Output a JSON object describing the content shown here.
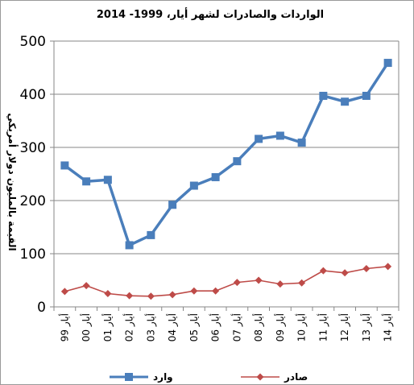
{
  "chart_data": {
    "type": "line",
    "title": "الواردات والصادرات لشهر أيار،  1999- 2014",
    "ylabel": "القيمة بالمليون دولار أمريكي",
    "xlabel": "",
    "ylim": [
      0,
      500
    ],
    "yticks": [
      "0",
      "100",
      "200",
      "300",
      "400",
      "500"
    ],
    "grid": true,
    "legend_position": "bottom",
    "categories": [
      "أيار 99",
      "أيار 00",
      "أيار 01",
      "أيار 02",
      "أيار 03",
      "أيار 04",
      "أيار 05",
      "أيار 06",
      "أيار 07",
      "أيار 08",
      "أيار 09",
      "أيار 10",
      "أيار 11",
      "أيار 12",
      "أيار 13",
      "أيار 14"
    ],
    "series": [
      {
        "name": "وارد",
        "color": "#4a7ebb",
        "marker": "square",
        "values": [
          266,
          236,
          239,
          116,
          135,
          192,
          228,
          244,
          274,
          316,
          322,
          309,
          397,
          386,
          397,
          459
        ]
      },
      {
        "name": "صادر",
        "color": "#be4b48",
        "marker": "diamond",
        "values": [
          29,
          40,
          25,
          21,
          20,
          23,
          30,
          30,
          46,
          50,
          43,
          45,
          68,
          64,
          72,
          76
        ]
      }
    ]
  }
}
